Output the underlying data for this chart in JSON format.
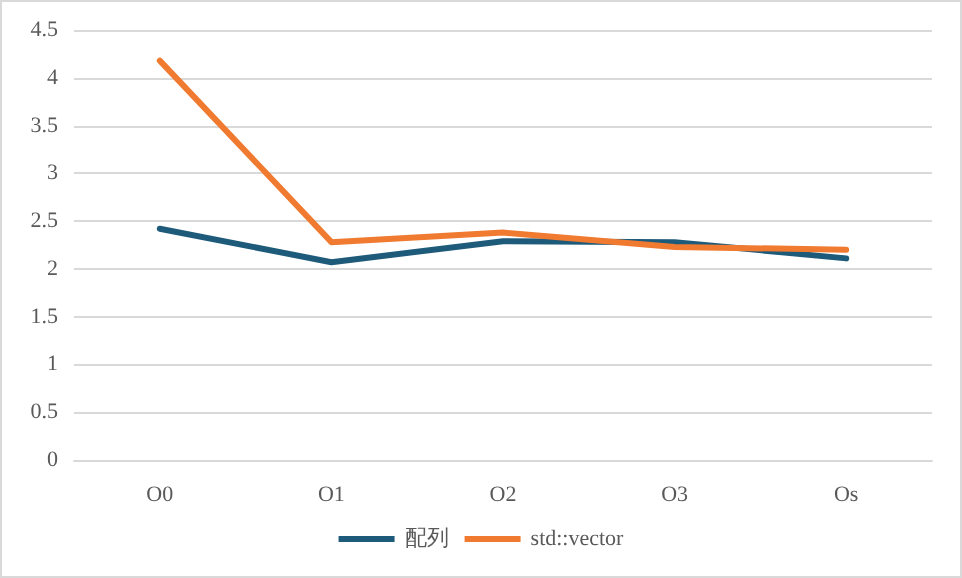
{
  "chart_data": {
    "type": "line",
    "categories": [
      "O0",
      "O1",
      "O2",
      "O3",
      "Os"
    ],
    "series": [
      {
        "name": "配列",
        "color": "#1e5a7a",
        "values": [
          2.42,
          2.07,
          2.29,
          2.28,
          2.11
        ]
      },
      {
        "name": "std::vector",
        "color": "#f07a30",
        "values": [
          4.18,
          2.28,
          2.38,
          2.23,
          2.2
        ]
      }
    ],
    "ylim": [
      0,
      4.5
    ],
    "yticks": [
      0,
      0.5,
      1,
      1.5,
      2,
      2.5,
      3,
      3.5,
      4,
      4.5
    ],
    "grid": "y",
    "legend": "bottom",
    "marker": "none",
    "line_style": "solid"
  }
}
